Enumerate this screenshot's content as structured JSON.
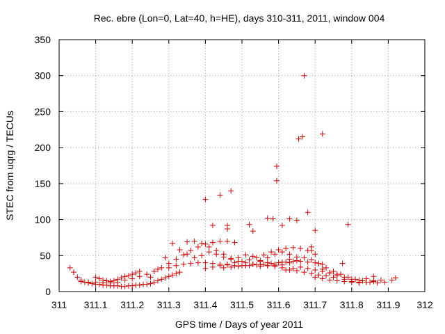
{
  "chart_data": {
    "type": "scatter",
    "title": "Rec. ebre (Lon=0, Lat=40, h=HE), days 310-311, 2011, window 004",
    "xlabel": "GPS time / Days of year 2011",
    "ylabel": "STEC from uqrg / TECUs",
    "xlim": [
      311,
      312
    ],
    "ylim": [
      0,
      350
    ],
    "grid": true,
    "marker": "+",
    "marker_color": "#cc0000",
    "xticks": [
      311,
      311.1,
      311.2,
      311.3,
      311.4,
      311.5,
      311.6,
      311.7,
      311.8,
      311.9,
      312
    ],
    "xtick_labels": [
      "311",
      "311.1",
      "311.2",
      "311.3",
      "311.4",
      "311.5",
      "311.6",
      "311.7",
      "311.8",
      "311.9",
      "312"
    ],
    "yticks": [
      0,
      50,
      100,
      150,
      200,
      250,
      300,
      350
    ],
    "ytick_labels": [
      "0",
      "50",
      "100",
      "150",
      "200",
      "250",
      "300",
      "350"
    ],
    "series": [
      {
        "name": "STEC",
        "points": [
          [
            311.03,
            33
          ],
          [
            311.04,
            27
          ],
          [
            311.05,
            20
          ],
          [
            311.06,
            16
          ],
          [
            311.07,
            13
          ],
          [
            311.08,
            12
          ],
          [
            311.09,
            11
          ],
          [
            311.1,
            10
          ],
          [
            311.11,
            10
          ],
          [
            311.12,
            9
          ],
          [
            311.13,
            9
          ],
          [
            311.14,
            8
          ],
          [
            311.15,
            8
          ],
          [
            311.16,
            8
          ],
          [
            311.17,
            7
          ],
          [
            311.18,
            7
          ],
          [
            311.19,
            8
          ],
          [
            311.2,
            8
          ],
          [
            311.21,
            9
          ],
          [
            311.22,
            9
          ],
          [
            311.23,
            10
          ],
          [
            311.24,
            10
          ],
          [
            311.25,
            11
          ],
          [
            311.26,
            13
          ],
          [
            311.27,
            15
          ],
          [
            311.28,
            17
          ],
          [
            311.29,
            19
          ],
          [
            311.3,
            21
          ],
          [
            311.31,
            23
          ],
          [
            311.32,
            25
          ],
          [
            311.33,
            27
          ],
          [
            311.1,
            20
          ],
          [
            311.11,
            18
          ],
          [
            311.12,
            16
          ],
          [
            311.13,
            15
          ],
          [
            311.14,
            14
          ],
          [
            311.15,
            15
          ],
          [
            311.16,
            17
          ],
          [
            311.17,
            19
          ],
          [
            311.18,
            21
          ],
          [
            311.19,
            22
          ],
          [
            311.2,
            24
          ],
          [
            311.21,
            26
          ],
          [
            311.22,
            28
          ],
          [
            311.06,
            14
          ],
          [
            311.08,
            13
          ],
          [
            311.1,
            13
          ],
          [
            311.12,
            12
          ],
          [
            311.14,
            12
          ],
          [
            311.16,
            13
          ],
          [
            311.18,
            16
          ],
          [
            311.2,
            18
          ],
          [
            311.22,
            21
          ],
          [
            311.24,
            24
          ],
          [
            311.26,
            28
          ],
          [
            311.28,
            33
          ],
          [
            311.3,
            39
          ],
          [
            311.32,
            45
          ],
          [
            311.34,
            51
          ],
          [
            311.36,
            57
          ],
          [
            311.38,
            62
          ],
          [
            311.4,
            66
          ],
          [
            311.42,
            68
          ],
          [
            311.44,
            70
          ],
          [
            311.46,
            70
          ],
          [
            311.48,
            68
          ],
          [
            311.25,
            20
          ],
          [
            311.27,
            31
          ],
          [
            311.29,
            47
          ],
          [
            311.31,
            67
          ],
          [
            311.33,
            58
          ],
          [
            311.35,
            52
          ],
          [
            311.37,
            47
          ],
          [
            311.39,
            50
          ],
          [
            311.41,
            55
          ],
          [
            311.43,
            52
          ],
          [
            311.45,
            48
          ],
          [
            311.47,
            45
          ],
          [
            311.49,
            47
          ],
          [
            311.51,
            51
          ],
          [
            311.53,
            49
          ],
          [
            311.55,
            43
          ],
          [
            311.57,
            40
          ],
          [
            311.59,
            35
          ],
          [
            311.61,
            33
          ],
          [
            311.63,
            30
          ],
          [
            311.65,
            29
          ],
          [
            311.67,
            27
          ],
          [
            311.69,
            25
          ],
          [
            311.71,
            23
          ],
          [
            311.73,
            22
          ],
          [
            311.75,
            20
          ],
          [
            311.3,
            33
          ],
          [
            311.32,
            36
          ],
          [
            311.34,
            38
          ],
          [
            311.36,
            39
          ],
          [
            311.38,
            40
          ],
          [
            311.4,
            40
          ],
          [
            311.42,
            39
          ],
          [
            311.44,
            38
          ],
          [
            311.46,
            37
          ],
          [
            311.48,
            36
          ],
          [
            311.5,
            36
          ],
          [
            311.52,
            36
          ],
          [
            311.54,
            37
          ],
          [
            311.56,
            38
          ],
          [
            311.58,
            39
          ],
          [
            311.6,
            40
          ],
          [
            311.62,
            41
          ],
          [
            311.64,
            42
          ],
          [
            311.66,
            42
          ],
          [
            311.68,
            41
          ],
          [
            311.7,
            40
          ],
          [
            311.72,
            38
          ],
          [
            311.35,
            69
          ],
          [
            311.37,
            70
          ],
          [
            311.39,
            67
          ],
          [
            311.41,
            62
          ],
          [
            311.43,
            57
          ],
          [
            311.45,
            52
          ],
          [
            311.47,
            46
          ],
          [
            311.49,
            42
          ],
          [
            311.51,
            40
          ],
          [
            311.53,
            38
          ],
          [
            311.55,
            37
          ],
          [
            311.57,
            36
          ],
          [
            311.59,
            36
          ],
          [
            311.61,
            37
          ],
          [
            311.63,
            40
          ],
          [
            311.65,
            43
          ],
          [
            311.4,
            32
          ],
          [
            311.42,
            34
          ],
          [
            311.44,
            36
          ],
          [
            311.46,
            38
          ],
          [
            311.48,
            40
          ],
          [
            311.5,
            42
          ],
          [
            311.52,
            44
          ],
          [
            311.54,
            47
          ],
          [
            311.56,
            51
          ],
          [
            311.58,
            55
          ],
          [
            311.6,
            58
          ],
          [
            311.62,
            60
          ],
          [
            311.64,
            61
          ],
          [
            311.66,
            60
          ],
          [
            311.68,
            57
          ],
          [
            311.7,
            52
          ],
          [
            311.45,
            33
          ],
          [
            311.47,
            34
          ],
          [
            311.49,
            35
          ],
          [
            311.51,
            36
          ],
          [
            311.53,
            38
          ],
          [
            311.55,
            42
          ],
          [
            311.57,
            47
          ],
          [
            311.59,
            52
          ],
          [
            311.61,
            55
          ],
          [
            311.63,
            52
          ],
          [
            311.55,
            35
          ],
          [
            311.57,
            36
          ],
          [
            311.59,
            38
          ],
          [
            311.61,
            41
          ],
          [
            311.63,
            45
          ],
          [
            311.65,
            48
          ],
          [
            311.67,
            47
          ],
          [
            311.69,
            44
          ],
          [
            311.71,
            39
          ],
          [
            311.73,
            33
          ],
          [
            311.75,
            28
          ],
          [
            311.77,
            24
          ],
          [
            311.79,
            20
          ],
          [
            311.81,
            17
          ],
          [
            311.83,
            15
          ],
          [
            311.85,
            13
          ],
          [
            311.87,
            12
          ],
          [
            311.89,
            13
          ],
          [
            311.91,
            16
          ],
          [
            311.62,
            30
          ],
          [
            311.64,
            32
          ],
          [
            311.66,
            34
          ],
          [
            311.68,
            32
          ],
          [
            311.7,
            30
          ],
          [
            311.72,
            28
          ],
          [
            311.74,
            26
          ],
          [
            311.76,
            22
          ],
          [
            311.78,
            17
          ],
          [
            311.8,
            14
          ],
          [
            311.82,
            13
          ],
          [
            311.84,
            13
          ],
          [
            311.86,
            14
          ],
          [
            311.88,
            16
          ],
          [
            311.7,
            20
          ],
          [
            311.72,
            18
          ],
          [
            311.74,
            16
          ],
          [
            311.76,
            15
          ],
          [
            311.78,
            14
          ],
          [
            311.8,
            13
          ],
          [
            311.82,
            12
          ],
          [
            311.84,
            13
          ],
          [
            311.86,
            15
          ],
          [
            311.92,
            19
          ],
          [
            311.72,
            31
          ],
          [
            311.74,
            26
          ],
          [
            311.76,
            24
          ],
          [
            311.78,
            20
          ],
          [
            311.8,
            17
          ],
          [
            311.82,
            16
          ],
          [
            311.84,
            18
          ],
          [
            311.86,
            21
          ],
          [
            311.775,
            39
          ],
          [
            311.4,
            128
          ],
          [
            311.44,
            134
          ],
          [
            311.47,
            140
          ],
          [
            311.46,
            92
          ],
          [
            311.46,
            87
          ],
          [
            311.42,
            92
          ],
          [
            311.52,
            93
          ],
          [
            311.53,
            84
          ],
          [
            311.57,
            102
          ],
          [
            311.585,
            101
          ],
          [
            311.595,
            174
          ],
          [
            311.595,
            154
          ],
          [
            311.61,
            92
          ],
          [
            311.63,
            101
          ],
          [
            311.65,
            99
          ],
          [
            311.655,
            212
          ],
          [
            311.665,
            215
          ],
          [
            311.67,
            300
          ],
          [
            311.68,
            110
          ],
          [
            311.7,
            85
          ],
          [
            311.69,
            62
          ],
          [
            311.69,
            57
          ],
          [
            311.72,
            219
          ],
          [
            311.79,
            93
          ]
        ]
      }
    ]
  }
}
